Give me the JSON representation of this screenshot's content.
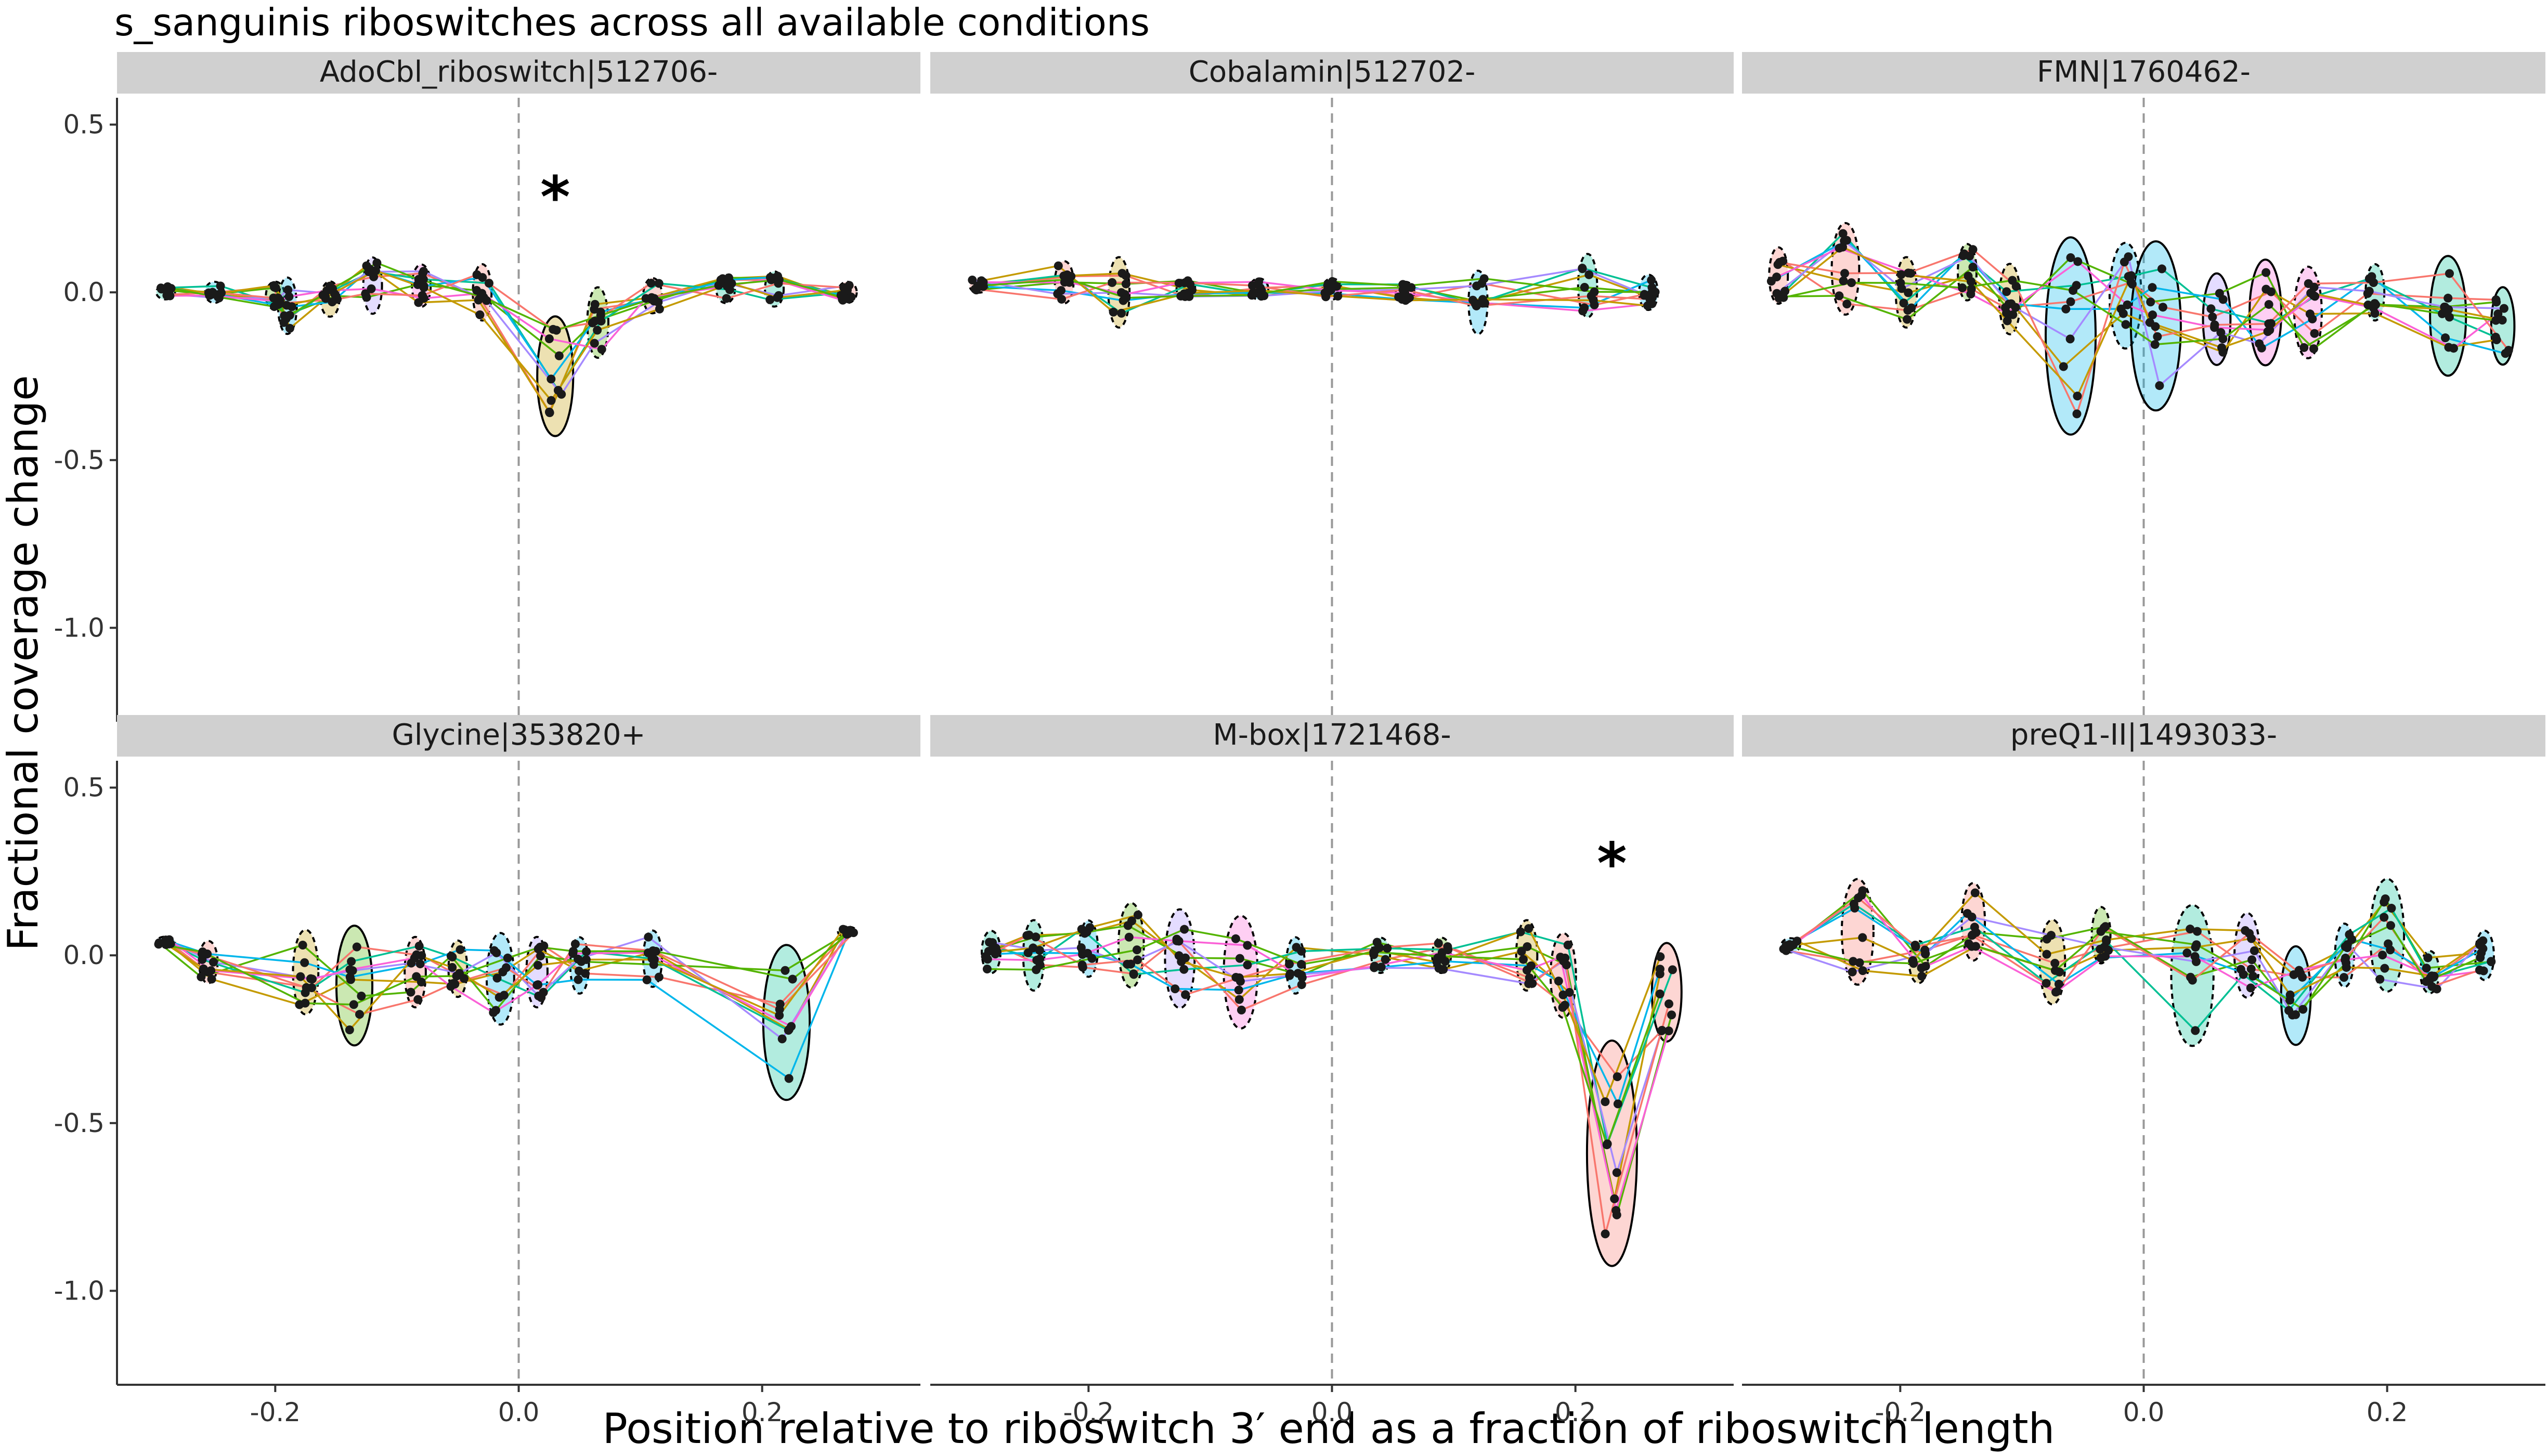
{
  "chart_data": {
    "type": "scatter",
    "title": "s_sanguinis riboswitches across all available conditions",
    "xlabel": "Position relative to riboswitch 3′ end as a fraction of riboswitch length",
    "ylabel": "Fractional coverage change",
    "xlim": [
      -0.33,
      0.33
    ],
    "ylim": [
      -1.28,
      0.58
    ],
    "x_ticks": [
      -0.2,
      0.0,
      0.2
    ],
    "x_tick_labels": [
      "-0.2",
      "0.0",
      "0.2"
    ],
    "y_ticks": [
      0.5,
      0.0,
      -0.5,
      -1.0
    ],
    "y_tick_labels": [
      "0.5",
      "0.0",
      "-0.5",
      "-1.0"
    ],
    "reference_line_x": 0.0,
    "grid": false,
    "legend": "none",
    "line_colors": [
      "#F8766D",
      "#C49A00",
      "#53B400",
      "#00C094",
      "#00B6EB",
      "#A58AFF",
      "#FB61D7"
    ],
    "panels": [
      {
        "label": "AdoCbl_riboswitch|512706-",
        "significance_marker": {
          "text": "*",
          "x": 0.03,
          "y": 0.31
        },
        "groups": [
          {
            "x": -0.29,
            "mean": 0.0,
            "spread": 0.02,
            "color": "#00C094",
            "style": "dashed"
          },
          {
            "x": -0.25,
            "mean": 0.0,
            "spread": 0.03,
            "color": "#00B6EB",
            "style": "dashed"
          },
          {
            "x": -0.2,
            "mean": -0.01,
            "spread": 0.04,
            "color": "#53B400",
            "style": "dashed"
          },
          {
            "x": -0.19,
            "mean": -0.04,
            "spread": 0.08,
            "color": "#00B6EB",
            "style": "dashed"
          },
          {
            "x": -0.155,
            "mean": -0.02,
            "spread": 0.05,
            "color": "#C49A00",
            "style": "dashed"
          },
          {
            "x": -0.12,
            "mean": 0.02,
            "spread": 0.08,
            "color": "#A58AFF",
            "style": "dashed"
          },
          {
            "x": -0.08,
            "mean": 0.02,
            "spread": 0.06,
            "color": "#FB61D7",
            "style": "dashed"
          },
          {
            "x": -0.03,
            "mean": 0.0,
            "spread": 0.08,
            "color": "#F8766D",
            "style": "dashed"
          },
          {
            "x": 0.03,
            "mean": -0.25,
            "spread": 0.17,
            "color": "#C49A00",
            "style": "solid"
          },
          {
            "x": 0.065,
            "mean": -0.09,
            "spread": 0.1,
            "color": "#53B400",
            "style": "dashed"
          },
          {
            "x": 0.11,
            "mean": -0.01,
            "spread": 0.05,
            "color": "#F8766D",
            "style": "dashed"
          },
          {
            "x": 0.17,
            "mean": 0.01,
            "spread": 0.04,
            "color": "#00C094",
            "style": "dashed"
          },
          {
            "x": 0.21,
            "mean": 0.01,
            "spread": 0.05,
            "color": "#00C094",
            "style": "dashed"
          },
          {
            "x": 0.27,
            "mean": 0.0,
            "spread": 0.03,
            "color": "#F8766D",
            "style": "dashed"
          }
        ]
      },
      {
        "label": "Cobalamin|512702-",
        "significance_marker": null,
        "groups": [
          {
            "x": -0.29,
            "mean": 0.02,
            "spread": 0.02,
            "color": "#F8766D",
            "style": "dashed"
          },
          {
            "x": -0.22,
            "mean": 0.03,
            "spread": 0.06,
            "color": "#F8766D",
            "style": "dashed"
          },
          {
            "x": -0.175,
            "mean": 0.0,
            "spread": 0.1,
            "color": "#C49A00",
            "style": "dashed"
          },
          {
            "x": -0.12,
            "mean": 0.01,
            "spread": 0.03,
            "color": "#53B400",
            "style": "dashed"
          },
          {
            "x": -0.06,
            "mean": 0.01,
            "spread": 0.03,
            "color": "#00B6EB",
            "style": "dashed"
          },
          {
            "x": 0.0,
            "mean": 0.01,
            "spread": 0.03,
            "color": "#A58AFF",
            "style": "dashed"
          },
          {
            "x": 0.06,
            "mean": 0.0,
            "spread": 0.03,
            "color": "#FB61D7",
            "style": "dashed"
          },
          {
            "x": 0.12,
            "mean": -0.03,
            "spread": 0.09,
            "color": "#00B6EB",
            "style": "dashed"
          },
          {
            "x": 0.21,
            "mean": 0.02,
            "spread": 0.09,
            "color": "#00C094",
            "style": "dashed"
          },
          {
            "x": 0.26,
            "mean": 0.0,
            "spread": 0.05,
            "color": "#00B6EB",
            "style": "dashed"
          }
        ]
      },
      {
        "label": "FMN|1760462-",
        "significance_marker": null,
        "groups": [
          {
            "x": -0.3,
            "mean": 0.05,
            "spread": 0.08,
            "color": "#F8766D",
            "style": "dashed"
          },
          {
            "x": -0.245,
            "mean": 0.07,
            "spread": 0.13,
            "color": "#F8766D",
            "style": "dashed"
          },
          {
            "x": -0.195,
            "mean": 0.0,
            "spread": 0.1,
            "color": "#C49A00",
            "style": "dashed"
          },
          {
            "x": -0.145,
            "mean": 0.06,
            "spread": 0.08,
            "color": "#53B400",
            "style": "dashed"
          },
          {
            "x": -0.11,
            "mean": -0.02,
            "spread": 0.1,
            "color": "#C49A00",
            "style": "dashed"
          },
          {
            "x": -0.06,
            "mean": -0.13,
            "spread": 0.28,
            "color": "#00B6EB",
            "style": "solid"
          },
          {
            "x": -0.015,
            "mean": -0.01,
            "spread": 0.15,
            "color": "#00B6EB",
            "style": "dashed"
          },
          {
            "x": 0.01,
            "mean": -0.1,
            "spread": 0.24,
            "color": "#00B6EB",
            "style": "solid"
          },
          {
            "x": 0.06,
            "mean": -0.08,
            "spread": 0.13,
            "color": "#A58AFF",
            "style": "solid"
          },
          {
            "x": 0.1,
            "mean": -0.06,
            "spread": 0.15,
            "color": "#FB61D7",
            "style": "solid"
          },
          {
            "x": 0.135,
            "mean": -0.06,
            "spread": 0.13,
            "color": "#FB61D7",
            "style": "dashed"
          },
          {
            "x": 0.19,
            "mean": 0.0,
            "spread": 0.08,
            "color": "#00C094",
            "style": "dashed"
          },
          {
            "x": 0.25,
            "mean": -0.07,
            "spread": 0.17,
            "color": "#00C094",
            "style": "solid"
          },
          {
            "x": 0.295,
            "mean": -0.1,
            "spread": 0.11,
            "color": "#00C094",
            "style": "solid"
          }
        ]
      },
      {
        "label": "Glycine|353820+",
        "significance_marker": null,
        "groups": [
          {
            "x": -0.29,
            "mean": 0.04,
            "spread": 0.01,
            "color": "#00B6EB",
            "style": "dashed"
          },
          {
            "x": -0.255,
            "mean": -0.02,
            "spread": 0.06,
            "color": "#F8766D",
            "style": "dashed"
          },
          {
            "x": -0.175,
            "mean": -0.05,
            "spread": 0.12,
            "color": "#C49A00",
            "style": "dashed"
          },
          {
            "x": -0.135,
            "mean": -0.09,
            "spread": 0.17,
            "color": "#53B400",
            "style": "solid"
          },
          {
            "x": -0.085,
            "mean": -0.05,
            "spread": 0.1,
            "color": "#F8766D",
            "style": "dashed"
          },
          {
            "x": -0.05,
            "mean": -0.04,
            "spread": 0.08,
            "color": "#C49A00",
            "style": "dashed"
          },
          {
            "x": -0.015,
            "mean": -0.07,
            "spread": 0.13,
            "color": "#00B6EB",
            "style": "dashed"
          },
          {
            "x": 0.015,
            "mean": -0.05,
            "spread": 0.1,
            "color": "#A58AFF",
            "style": "dashed"
          },
          {
            "x": 0.05,
            "mean": -0.03,
            "spread": 0.08,
            "color": "#00B6EB",
            "style": "dashed"
          },
          {
            "x": 0.11,
            "mean": -0.01,
            "spread": 0.08,
            "color": "#00B6EB",
            "style": "dashed"
          },
          {
            "x": 0.22,
            "mean": -0.2,
            "spread": 0.22,
            "color": "#00C094",
            "style": "solid"
          },
          {
            "x": 0.27,
            "mean": 0.07,
            "spread": 0.01,
            "color": "#53B400",
            "style": "dashed"
          }
        ]
      },
      {
        "label": "M-box|1721468-",
        "significance_marker": {
          "text": "*",
          "x": 0.23,
          "y": 0.3
        },
        "groups": [
          {
            "x": -0.28,
            "mean": 0.01,
            "spread": 0.06,
            "color": "#00C094",
            "style": "dashed"
          },
          {
            "x": -0.245,
            "mean": 0.0,
            "spread": 0.1,
            "color": "#00C094",
            "style": "dashed"
          },
          {
            "x": -0.2,
            "mean": 0.02,
            "spread": 0.08,
            "color": "#00B6EB",
            "style": "dashed"
          },
          {
            "x": -0.165,
            "mean": 0.03,
            "spread": 0.12,
            "color": "#53B400",
            "style": "dashed"
          },
          {
            "x": -0.125,
            "mean": -0.01,
            "spread": 0.14,
            "color": "#A58AFF",
            "style": "dashed"
          },
          {
            "x": -0.075,
            "mean": -0.05,
            "spread": 0.16,
            "color": "#FB61D7",
            "style": "dashed"
          },
          {
            "x": -0.03,
            "mean": -0.03,
            "spread": 0.08,
            "color": "#00B6EB",
            "style": "dashed"
          },
          {
            "x": 0.04,
            "mean": 0.0,
            "spread": 0.05,
            "color": "#00C094",
            "style": "dashed"
          },
          {
            "x": 0.09,
            "mean": 0.0,
            "spread": 0.05,
            "color": "#53B400",
            "style": "dashed"
          },
          {
            "x": 0.16,
            "mean": 0.0,
            "spread": 0.1,
            "color": "#C49A00",
            "style": "dashed"
          },
          {
            "x": 0.19,
            "mean": -0.06,
            "spread": 0.12,
            "color": "#F8766D",
            "style": "dashed"
          },
          {
            "x": 0.23,
            "mean": -0.59,
            "spread": 0.32,
            "color": "#F8766D",
            "style": "solid"
          },
          {
            "x": 0.275,
            "mean": -0.11,
            "spread": 0.14,
            "color": "#F8766D",
            "style": "solid"
          }
        ]
      },
      {
        "label": "preQ1-II|1493033-",
        "significance_marker": null,
        "groups": [
          {
            "x": -0.29,
            "mean": 0.03,
            "spread": 0.02,
            "color": "#00B6EB",
            "style": "dashed"
          },
          {
            "x": -0.235,
            "mean": 0.07,
            "spread": 0.15,
            "color": "#F8766D",
            "style": "dashed"
          },
          {
            "x": -0.185,
            "mean": -0.02,
            "spread": 0.06,
            "color": "#C49A00",
            "style": "dashed"
          },
          {
            "x": -0.14,
            "mean": 0.1,
            "spread": 0.11,
            "color": "#F8766D",
            "style": "dashed"
          },
          {
            "x": -0.075,
            "mean": -0.02,
            "spread": 0.12,
            "color": "#C49A00",
            "style": "dashed"
          },
          {
            "x": -0.035,
            "mean": 0.06,
            "spread": 0.08,
            "color": "#53B400",
            "style": "dashed"
          },
          {
            "x": 0.04,
            "mean": -0.06,
            "spread": 0.2,
            "color": "#00C094",
            "style": "dashed"
          },
          {
            "x": 0.085,
            "mean": 0.0,
            "spread": 0.12,
            "color": "#A58AFF",
            "style": "dashed"
          },
          {
            "x": 0.125,
            "mean": -0.12,
            "spread": 0.14,
            "color": "#00B6EB",
            "style": "solid"
          },
          {
            "x": 0.165,
            "mean": 0.0,
            "spread": 0.09,
            "color": "#00B6EB",
            "style": "dashed"
          },
          {
            "x": 0.2,
            "mean": 0.06,
            "spread": 0.16,
            "color": "#00C094",
            "style": "dashed"
          },
          {
            "x": 0.235,
            "mean": -0.05,
            "spread": 0.06,
            "color": "#00C094",
            "style": "dashed"
          },
          {
            "x": 0.28,
            "mean": 0.0,
            "spread": 0.07,
            "color": "#00B6EB",
            "style": "dashed"
          }
        ]
      }
    ]
  }
}
